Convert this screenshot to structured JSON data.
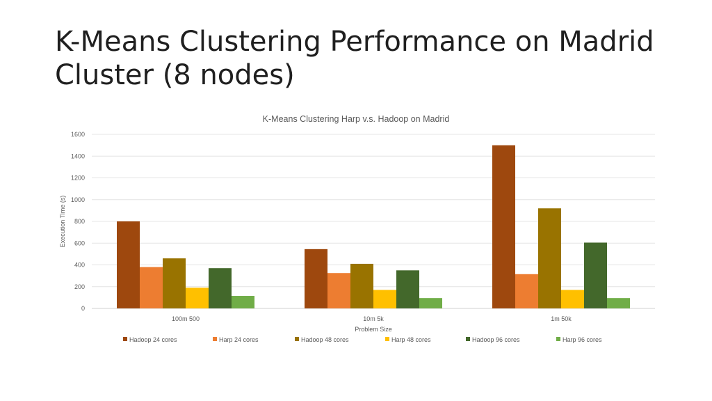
{
  "slide": {
    "title_line1": "K-Means Clustering Performance on Madrid",
    "title_line2": "Cluster (8 nodes)"
  },
  "chart_data": {
    "type": "bar",
    "title": "K-Means Clustering Harp v.s. Hadoop on Madrid",
    "xlabel": "Problem Size",
    "ylabel": "Execution Time (s)",
    "ylim": [
      0,
      1600
    ],
    "yticks": [
      0,
      200,
      400,
      600,
      800,
      1000,
      1200,
      1400,
      1600
    ],
    "grid": true,
    "legend_position": "bottom",
    "categories": [
      "100m 500",
      "10m 5k",
      "1m 50k"
    ],
    "series": [
      {
        "name": "Hadoop 24 cores",
        "color": "#9E480E",
        "values": [
          800,
          545,
          1500
        ]
      },
      {
        "name": "Harp 24 cores",
        "color": "#ED7D31",
        "values": [
          380,
          325,
          315
        ]
      },
      {
        "name": "Hadoop 48 cores",
        "color": "#997300",
        "values": [
          460,
          410,
          920
        ]
      },
      {
        "name": "Harp 48 cores",
        "color": "#FFC000",
        "values": [
          190,
          170,
          170
        ]
      },
      {
        "name": "Hadoop 96 cores",
        "color": "#43682B",
        "values": [
          370,
          350,
          605
        ]
      },
      {
        "name": "Harp 96 cores",
        "color": "#70AD47",
        "values": [
          115,
          95,
          95
        ]
      }
    ]
  }
}
